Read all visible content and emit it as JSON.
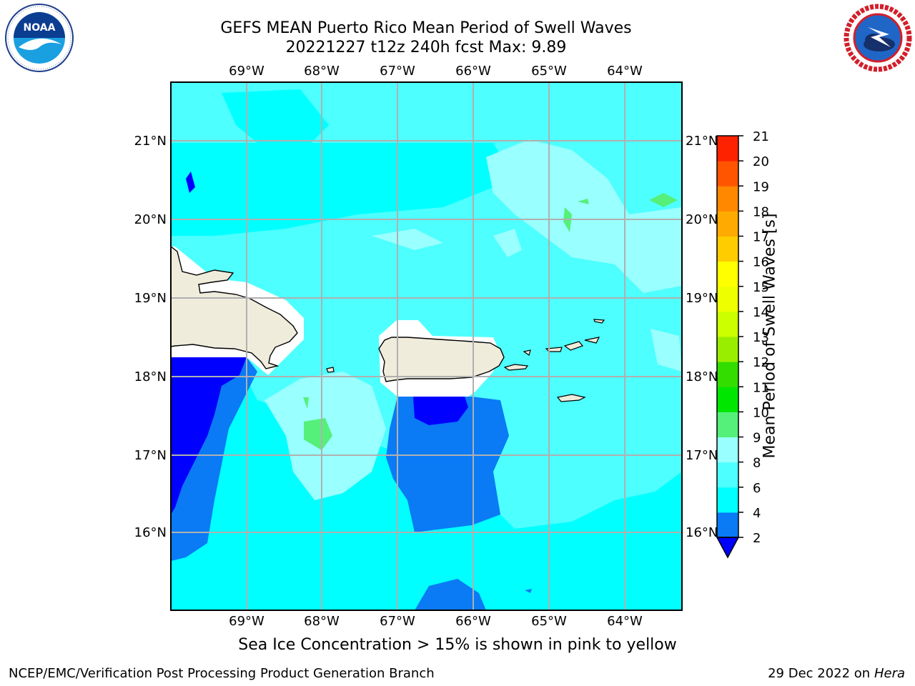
{
  "header": {
    "title_line1": "GEFS MEAN Puerto Rico Mean Period of Swell Waves",
    "title_line2": "20221227 t12z 240h fcst   Max: 9.89"
  },
  "logos": {
    "left": "noaa-logo",
    "right": "nws-logo",
    "left_text": "NOAA",
    "left_ring_text": "NATIONAL OCEANIC AND ATMOSPHERIC ADMINISTRATION · U.S. DEPARTMENT OF COMMERCE",
    "right_ring_text": "NATIONAL WEATHER SERVICE"
  },
  "map": {
    "lon_labels": [
      "69°W",
      "68°W",
      "67°W",
      "66°W",
      "65°W",
      "64°W"
    ],
    "lat_labels": [
      "21°N",
      "20°N",
      "19°N",
      "18°N",
      "17°N",
      "16°N"
    ],
    "ocean_colors": {
      "deep_blue": "#0000ff",
      "blue": "#0a7af5",
      "cyan": "#00ffff",
      "light_cyan": "#4dffff",
      "pale_cyan": "#99ffff",
      "green": "#55f07a",
      "land": "#efecdc",
      "mask": "#ffffff"
    }
  },
  "colorbar": {
    "label": "Mean Period of Swell Waves [s]",
    "ticks": [
      "2",
      "4",
      "6",
      "8",
      "9",
      "10",
      "11",
      "12",
      "13",
      "14",
      "15",
      "16",
      "17",
      "18",
      "19",
      "20",
      "21"
    ],
    "colors": [
      "#0a7af5",
      "#00ffff",
      "#4dffff",
      "#99ffff",
      "#55f07a",
      "#00e600",
      "#33dd00",
      "#99ee00",
      "#ccff00",
      "#eeff00",
      "#ffff00",
      "#ffcc00",
      "#ffaa00",
      "#ff8800",
      "#ff5500",
      "#ff2200"
    ],
    "extend_color": "#0000ff"
  },
  "caption": "Sea Ice Concentration > 15% is shown in pink to yellow",
  "footer": {
    "left": "NCEP/EMC/Verification Post Processing Product Generation Branch",
    "right_date": "29 Dec 2022 on",
    "right_host": "Hera"
  }
}
